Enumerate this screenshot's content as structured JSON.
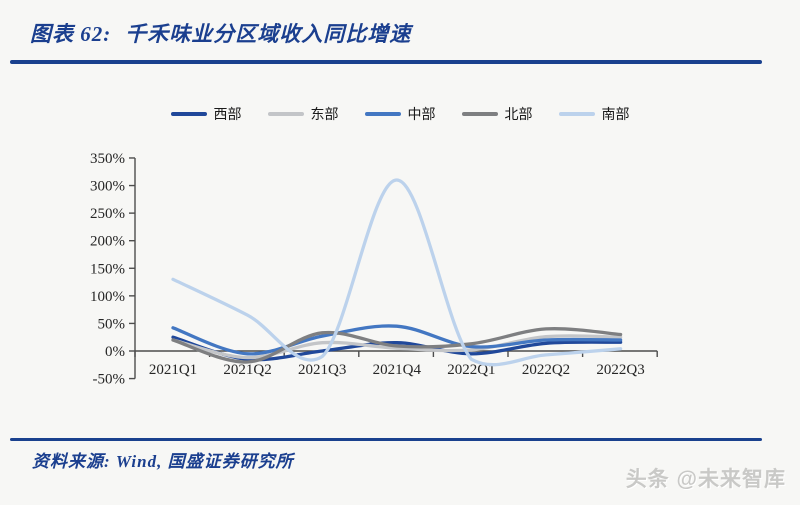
{
  "page": {
    "background_color": "#f7f7f5",
    "accent_color": "#1a418e"
  },
  "header": {
    "figure_label": "图表 62:",
    "figure_title": "千禾味业分区域收入同比增速"
  },
  "chart_data": {
    "type": "line",
    "smooth": true,
    "grid": false,
    "legend_position": "top",
    "title": "千禾味业分区域收入同比增速",
    "categories": [
      "2021Q1",
      "2021Q2",
      "2021Q3",
      "2021Q4",
      "2022Q1",
      "2022Q2",
      "2022Q3"
    ],
    "ylabel": "",
    "xlabel": "",
    "ylim": [
      -50,
      350
    ],
    "ytick_step": 50,
    "ytick_labels": [
      "350%",
      "300%",
      "250%",
      "200%",
      "150%",
      "100%",
      "50%",
      "0%",
      "-50%"
    ],
    "series": [
      {
        "key": "west",
        "name": "西部",
        "color": "#20489a",
        "values": [
          25,
          -15,
          0,
          15,
          -5,
          14,
          16
        ]
      },
      {
        "key": "east",
        "name": "东部",
        "color": "#c3c5c8",
        "values": [
          20,
          -12,
          15,
          5,
          2,
          26,
          25
        ]
      },
      {
        "key": "central",
        "name": "中部",
        "color": "#4377c2",
        "values": [
          42,
          -5,
          27,
          45,
          8,
          20,
          20
        ]
      },
      {
        "key": "north",
        "name": "北部",
        "color": "#7e7f81",
        "values": [
          20,
          -20,
          33,
          9,
          13,
          40,
          30
        ]
      },
      {
        "key": "south",
        "name": "南部",
        "color": "#bcd2ec",
        "values": [
          130,
          65,
          -10,
          310,
          -15,
          -7,
          4
        ]
      }
    ]
  },
  "footer": {
    "source": "资料来源: Wind, 国盛证券研究所",
    "watermark": "头条 @未来智库"
  }
}
